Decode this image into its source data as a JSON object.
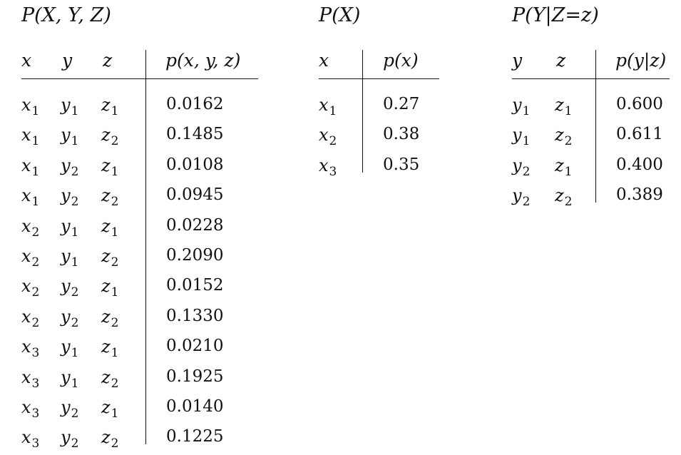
{
  "joint": {
    "title": "P(X, Y, Z)",
    "headers": [
      "x",
      "y",
      "z",
      "p(x, y, z)"
    ],
    "rows": [
      {
        "x": "x",
        "xs": "1",
        "y": "y",
        "ys": "1",
        "z": "z",
        "zs": "1",
        "p": "0.0162"
      },
      {
        "x": "x",
        "xs": "1",
        "y": "y",
        "ys": "1",
        "z": "z",
        "zs": "2",
        "p": "0.1485"
      },
      {
        "x": "x",
        "xs": "1",
        "y": "y",
        "ys": "2",
        "z": "z",
        "zs": "1",
        "p": "0.0108"
      },
      {
        "x": "x",
        "xs": "1",
        "y": "y",
        "ys": "2",
        "z": "z",
        "zs": "2",
        "p": "0.0945"
      },
      {
        "x": "x",
        "xs": "2",
        "y": "y",
        "ys": "1",
        "z": "z",
        "zs": "1",
        "p": "0.0228"
      },
      {
        "x": "x",
        "xs": "2",
        "y": "y",
        "ys": "1",
        "z": "z",
        "zs": "2",
        "p": "0.2090"
      },
      {
        "x": "x",
        "xs": "2",
        "y": "y",
        "ys": "2",
        "z": "z",
        "zs": "1",
        "p": "0.0152"
      },
      {
        "x": "x",
        "xs": "2",
        "y": "y",
        "ys": "2",
        "z": "z",
        "zs": "2",
        "p": "0.1330"
      },
      {
        "x": "x",
        "xs": "3",
        "y": "y",
        "ys": "1",
        "z": "z",
        "zs": "1",
        "p": "0.0210"
      },
      {
        "x": "x",
        "xs": "3",
        "y": "y",
        "ys": "1",
        "z": "z",
        "zs": "2",
        "p": "0.1925"
      },
      {
        "x": "x",
        "xs": "3",
        "y": "y",
        "ys": "2",
        "z": "z",
        "zs": "1",
        "p": "0.0140"
      },
      {
        "x": "x",
        "xs": "3",
        "y": "y",
        "ys": "2",
        "z": "z",
        "zs": "2",
        "p": "0.1225"
      }
    ]
  },
  "marginal": {
    "title": "P(X)",
    "headers": [
      "x",
      "p(x)"
    ],
    "rows": [
      {
        "x": "x",
        "xs": "1",
        "p": "0.27"
      },
      {
        "x": "x",
        "xs": "2",
        "p": "0.38"
      },
      {
        "x": "x",
        "xs": "3",
        "p": "0.35"
      }
    ]
  },
  "conditional": {
    "title": "P(Y|Z=z)",
    "headers": [
      "y",
      "z",
      "p(y|z)"
    ],
    "rows": [
      {
        "y": "y",
        "ys": "1",
        "z": "z",
        "zs": "1",
        "p": "0.600"
      },
      {
        "y": "y",
        "ys": "1",
        "z": "z",
        "zs": "2",
        "p": "0.611"
      },
      {
        "y": "y",
        "ys": "2",
        "z": "z",
        "zs": "1",
        "p": "0.400"
      },
      {
        "y": "y",
        "ys": "2",
        "z": "z",
        "zs": "2",
        "p": "0.389"
      }
    ]
  }
}
